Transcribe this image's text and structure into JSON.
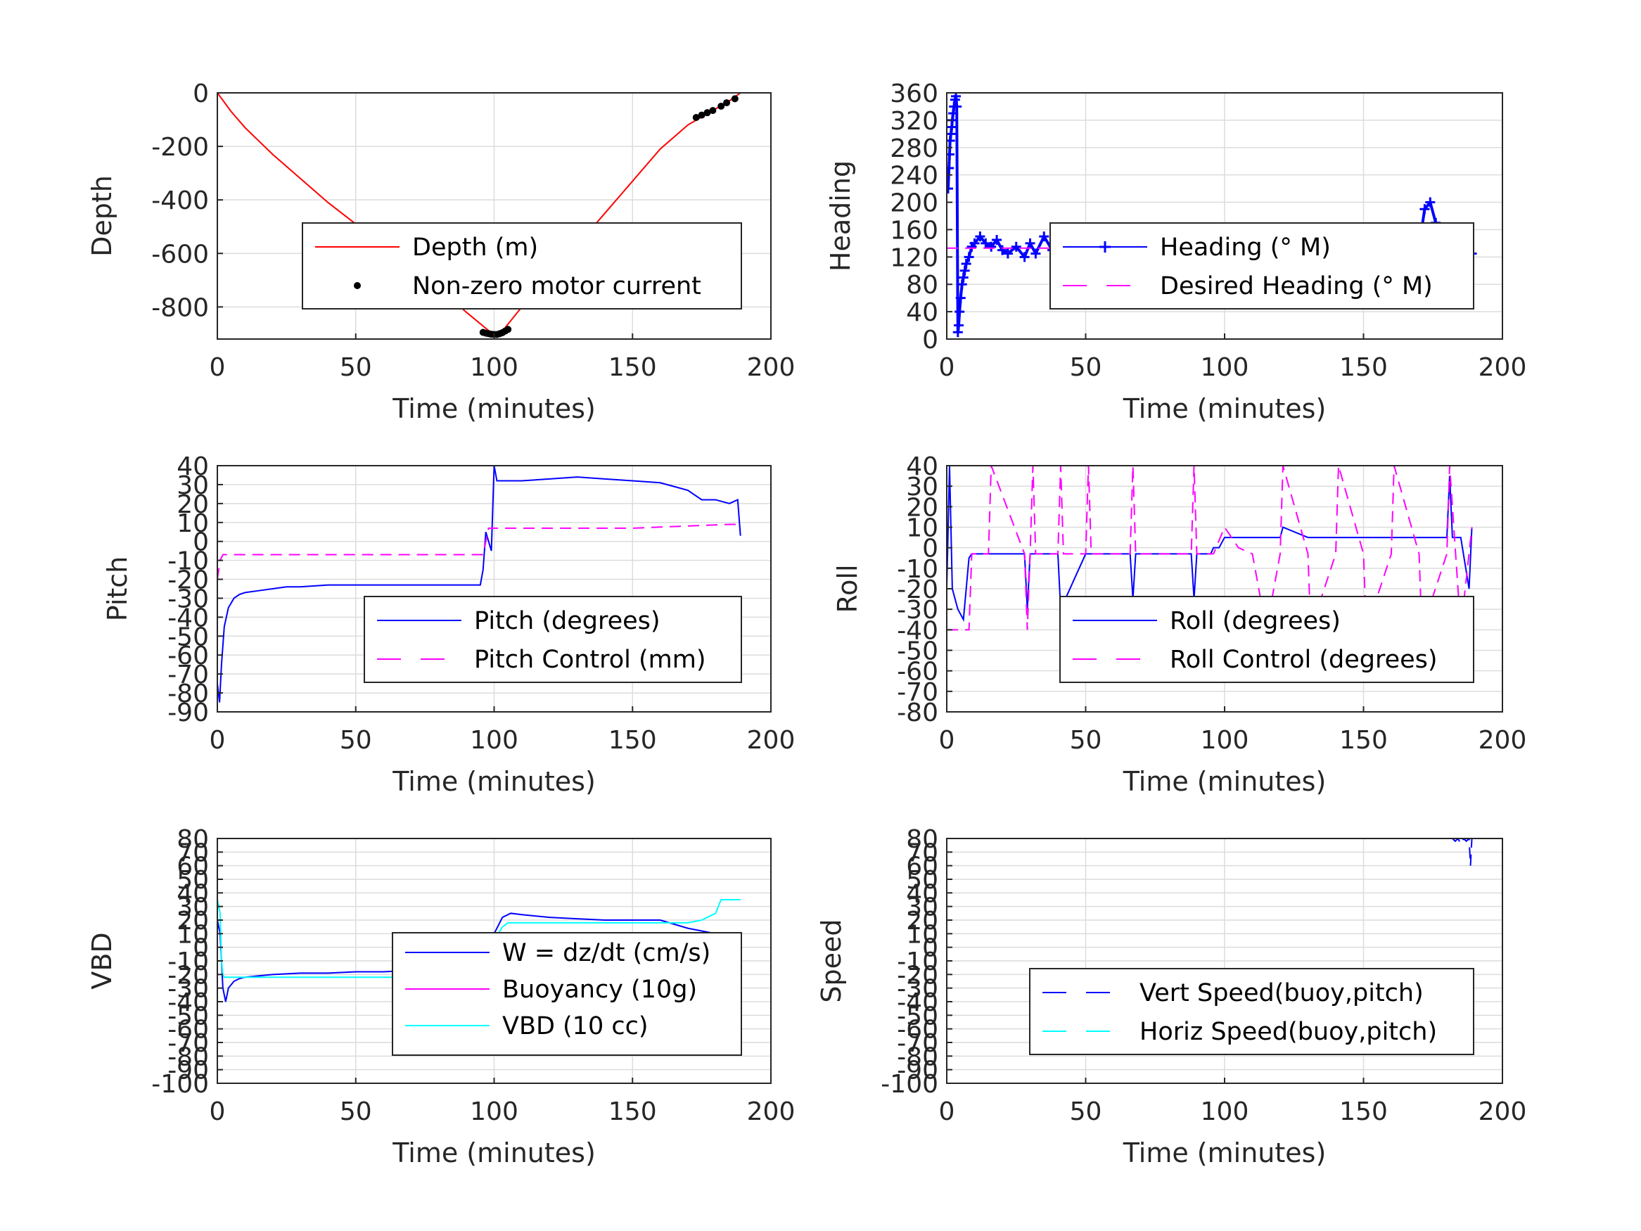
{
  "chart_data": [
    {
      "type": "line",
      "panel": "depth",
      "xlabel": "Time (minutes)",
      "ylabel": "Depth",
      "xlim": [
        0,
        200
      ],
      "ylim": [
        -920,
        0
      ],
      "xticks": [
        "0",
        "50",
        "100",
        "150",
        "200"
      ],
      "yticks": [
        "0",
        "-200",
        "-400",
        "-600",
        "-800"
      ],
      "ytick_values": [
        0,
        -200,
        -400,
        -600,
        -800
      ],
      "legend_position": "center-right",
      "series": [
        {
          "name": "Depth (m)",
          "color": "#ff0000",
          "style": "solid",
          "x": [
            0,
            5,
            10,
            20,
            30,
            40,
            50,
            60,
            70,
            80,
            90,
            97,
            100,
            103,
            110,
            120,
            130,
            140,
            150,
            160,
            170,
            175,
            180,
            185,
            189
          ],
          "y": [
            0,
            -70,
            -130,
            -230,
            -320,
            -410,
            -490,
            -570,
            -650,
            -730,
            -820,
            -880,
            -905,
            -890,
            -800,
            -690,
            -570,
            -450,
            -330,
            -210,
            -120,
            -90,
            -60,
            -30,
            0
          ]
        },
        {
          "name": "Non-zero motor current",
          "color": "#000000",
          "style": "dots",
          "x": [
            96,
            97,
            98,
            99,
            100,
            101,
            102,
            103,
            104,
            105,
            173,
            175,
            177,
            179,
            182,
            184,
            187
          ],
          "y": [
            -895,
            -898,
            -900,
            -902,
            -903,
            -903,
            -900,
            -896,
            -890,
            -884,
            -92,
            -83,
            -74,
            -66,
            -50,
            -37,
            -22
          ]
        }
      ]
    },
    {
      "type": "scatter",
      "panel": "heading",
      "xlabel": "Time (minutes)",
      "ylabel": "Heading",
      "xlim": [
        0,
        200
      ],
      "ylim": [
        0,
        360
      ],
      "xticks": [
        "0",
        "50",
        "100",
        "150",
        "200"
      ],
      "yticks": [
        "0",
        "40",
        "80",
        "120",
        "160",
        "200",
        "240",
        "280",
        "320",
        "360"
      ],
      "ytick_values": [
        0,
        40,
        80,
        120,
        160,
        200,
        240,
        280,
        320,
        360
      ],
      "legend_position": "center-right",
      "series": [
        {
          "name": "Heading (° M)",
          "color": "#0000ff",
          "style": "plus",
          "x": [
            0.5,
            0.8,
            1.0,
            1.2,
            1.5,
            1.8,
            2.0,
            2.3,
            2.6,
            3.0,
            3.3,
            3.6,
            4.0,
            4.3,
            4.6,
            5.0,
            5.5,
            6.0,
            6.5,
            7,
            8,
            9,
            10,
            12,
            14,
            16,
            18,
            20,
            22,
            25,
            28,
            30,
            32,
            35,
            38,
            40,
            45,
            50,
            55,
            60,
            65,
            70,
            75,
            80,
            85,
            90,
            95,
            98,
            100,
            105,
            110,
            115,
            120,
            125,
            130,
            135,
            140,
            145,
            150,
            155,
            160,
            163,
            166,
            168,
            170,
            172,
            174,
            176,
            178,
            180,
            183,
            186,
            189
          ],
          "y": [
            220,
            250,
            270,
            290,
            300,
            310,
            320,
            330,
            340,
            350,
            355,
            340,
            10,
            20,
            40,
            60,
            80,
            90,
            100,
            110,
            120,
            135,
            140,
            150,
            140,
            135,
            145,
            130,
            125,
            135,
            120,
            140,
            125,
            150,
            130,
            140,
            130,
            150,
            135,
            125,
            145,
            130,
            150,
            130,
            140,
            135,
            130,
            110,
            100,
            130,
            145,
            125,
            140,
            120,
            135,
            150,
            125,
            140,
            130,
            155,
            120,
            140,
            110,
            150,
            135,
            190,
            200,
            170,
            140,
            160,
            135,
            145,
            125
          ]
        },
        {
          "name": "Desired Heading (° M)",
          "color": "#ff00ff",
          "style": "dashed",
          "x": [
            0,
            190
          ],
          "y": [
            133,
            133
          ]
        }
      ]
    },
    {
      "type": "line",
      "panel": "pitch",
      "xlabel": "Time (minutes)",
      "ylabel": "Pitch",
      "xlim": [
        0,
        200
      ],
      "ylim": [
        -90,
        40
      ],
      "xticks": [
        "0",
        "50",
        "100",
        "150",
        "200"
      ],
      "yticks": [
        "-90",
        "-80",
        "-70",
        "-60",
        "-50",
        "-40",
        "-30",
        "-20",
        "-10",
        "0",
        "10",
        "20",
        "30",
        "40"
      ],
      "ytick_values": [
        -90,
        -80,
        -70,
        -60,
        -50,
        -40,
        -30,
        -20,
        -10,
        0,
        10,
        20,
        30,
        40
      ],
      "legend_position": "bottom-right",
      "series": [
        {
          "name": "Pitch (degrees)",
          "color": "#0000ff",
          "style": "solid",
          "x": [
            0,
            0.8,
            1.5,
            2.5,
            4,
            6,
            8,
            10,
            15,
            20,
            25,
            30,
            40,
            50,
            60,
            70,
            80,
            90,
            95,
            96,
            97,
            98,
            99,
            100,
            101,
            105,
            110,
            120,
            130,
            140,
            150,
            160,
            165,
            170,
            175,
            180,
            185,
            188,
            189
          ],
          "y": [
            -75,
            -85,
            -65,
            -45,
            -35,
            -30,
            -28,
            -27,
            -26,
            -25,
            -24,
            -24,
            -23,
            -23,
            -23,
            -23,
            -23,
            -23,
            -23,
            -15,
            5,
            0,
            -5,
            40,
            32,
            32,
            32,
            33,
            34,
            33,
            32,
            31,
            29,
            27,
            22,
            22,
            20,
            22,
            3
          ]
        },
        {
          "name": "Pitch Control (mm)",
          "color": "#ff00ff",
          "style": "dashed",
          "x": [
            0,
            1,
            2,
            5,
            50,
            96,
            98,
            100,
            150,
            185,
            189
          ],
          "y": [
            -20,
            -10,
            -7,
            -7,
            -7,
            -7,
            7,
            7,
            7,
            9,
            9
          ]
        }
      ]
    },
    {
      "type": "line",
      "panel": "roll",
      "xlabel": "Time (minutes)",
      "ylabel": "Roll",
      "xlim": [
        0,
        200
      ],
      "ylim": [
        -80,
        40
      ],
      "xticks": [
        "0",
        "50",
        "100",
        "150",
        "200"
      ],
      "yticks": [
        "-80",
        "-70",
        "-60",
        "-50",
        "-40",
        "-30",
        "-20",
        "-10",
        "0",
        "10",
        "20",
        "30",
        "40"
      ],
      "ytick_values": [
        -80,
        -70,
        -60,
        -50,
        -40,
        -30,
        -20,
        -10,
        0,
        10,
        20,
        30,
        40
      ],
      "legend_position": "bottom-right",
      "series": [
        {
          "name": "Roll (degrees)",
          "color": "#0000ff",
          "style": "solid",
          "x": [
            0,
            1,
            1.5,
            2,
            3,
            4,
            6,
            8,
            9,
            10,
            20,
            28,
            29,
            30,
            40,
            41,
            50,
            66,
            67,
            68,
            80,
            88,
            89,
            90,
            95,
            96,
            97,
            98,
            100,
            110,
            120,
            121,
            130,
            150,
            160,
            170,
            180,
            181,
            182,
            185,
            188,
            189
          ],
          "y": [
            -20,
            40,
            10,
            -20,
            -25,
            -30,
            -35,
            -5,
            -3,
            -3,
            -3,
            -3,
            -30,
            -3,
            -3,
            -30,
            -3,
            -3,
            -25,
            -3,
            -3,
            -3,
            -25,
            -3,
            -3,
            0,
            0,
            0,
            5,
            5,
            5,
            10,
            5,
            5,
            5,
            5,
            5,
            35,
            5,
            5,
            -20,
            10
          ]
        },
        {
          "name": "Roll Control (degrees)",
          "color": "#ff00ff",
          "style": "dashed",
          "x": [
            0,
            8,
            9,
            10,
            15,
            16,
            28,
            29,
            30,
            31,
            32,
            40,
            41,
            42,
            50,
            51,
            52,
            66,
            67,
            68,
            88,
            89,
            90,
            96,
            100,
            105,
            110,
            115,
            120,
            121,
            130,
            131,
            140,
            141,
            150,
            151,
            160,
            161,
            170,
            171,
            180,
            181,
            185,
            189
          ],
          "y": [
            -40,
            -40,
            -3,
            -3,
            -3,
            40,
            -3,
            -40,
            -3,
            40,
            -3,
            -3,
            40,
            -3,
            -3,
            40,
            -3,
            -3,
            40,
            -3,
            -3,
            40,
            -3,
            -3,
            10,
            0,
            -3,
            -40,
            -3,
            40,
            -3,
            -40,
            -3,
            40,
            -3,
            -40,
            -3,
            40,
            -3,
            -40,
            -3,
            40,
            -40,
            10
          ]
        }
      ]
    },
    {
      "type": "line",
      "panel": "vbd",
      "xlabel": "Time (minutes)",
      "ylabel": "VBD",
      "xlim": [
        0,
        200
      ],
      "ylim": [
        -100,
        80
      ],
      "xticks": [
        "0",
        "50",
        "100",
        "150",
        "200"
      ],
      "yticks": [
        "-100",
        "-90",
        "-80",
        "-70",
        "-60",
        "-50",
        "-40",
        "-30",
        "-20",
        "-10",
        "0",
        "10",
        "20",
        "30",
        "40",
        "50",
        "60",
        "70",
        "80"
      ],
      "ytick_values": [
        -100,
        -90,
        -80,
        -70,
        -60,
        -50,
        -40,
        -30,
        -20,
        -10,
        0,
        10,
        20,
        30,
        40,
        50,
        60,
        70,
        80
      ],
      "legend_position": "center-right",
      "series": [
        {
          "name": "W = dz/dt (cm/s)",
          "color": "#0000ff",
          "style": "solid",
          "x": [
            0,
            1,
            2,
            3,
            4,
            6,
            8,
            10,
            20,
            30,
            40,
            50,
            60,
            70,
            80,
            90,
            95,
            97,
            100,
            103,
            106,
            110,
            120,
            130,
            140,
            150,
            160,
            170,
            180,
            185,
            189
          ],
          "y": [
            20,
            10,
            -30,
            -40,
            -30,
            -25,
            -23,
            -22,
            -20,
            -19,
            -19,
            -18,
            -18,
            -17,
            -17,
            -17,
            -17,
            -10,
            10,
            22,
            25,
            24,
            22,
            21,
            20,
            20,
            20,
            14,
            10,
            10,
            10
          ]
        },
        {
          "name": "Buoyancy (10g)",
          "color": "#ff00ff",
          "style": "solid",
          "x": [],
          "y": []
        },
        {
          "name": "VBD (10 cc)",
          "color": "#00ffff",
          "style": "solid",
          "x": [
            0,
            1,
            1.5,
            2,
            2.5,
            4,
            50,
            95,
            98,
            100,
            103,
            105,
            110,
            120,
            170,
            175,
            180,
            182,
            185,
            189
          ],
          "y": [
            35,
            25,
            -10,
            -20,
            -22,
            -22,
            -22,
            -22,
            -10,
            5,
            15,
            18,
            18,
            18,
            18,
            20,
            25,
            35,
            35,
            35
          ]
        }
      ]
    },
    {
      "type": "line",
      "panel": "speed",
      "xlabel": "Time (minutes)",
      "ylabel": "Speed",
      "xlim": [
        0,
        200
      ],
      "ylim": [
        -100,
        80
      ],
      "xticks": [
        "0",
        "50",
        "100",
        "150",
        "200"
      ],
      "yticks": [
        "-100",
        "-90",
        "-80",
        "-70",
        "-60",
        "-50",
        "-40",
        "-30",
        "-20",
        "-10",
        "0",
        "10",
        "20",
        "30",
        "40",
        "50",
        "60",
        "70",
        "80"
      ],
      "ytick_values": [
        -100,
        -90,
        -80,
        -70,
        -60,
        -50,
        -40,
        -30,
        -20,
        -10,
        0,
        10,
        20,
        30,
        40,
        50,
        60,
        70,
        80
      ],
      "legend_position": "bottom-right",
      "series": [
        {
          "name": "Vert Speed(buoy,pitch)",
          "color": "#0000ff",
          "style": "dashed",
          "x": [
            182,
            183,
            184,
            185,
            186,
            187,
            188,
            188.5,
            189
          ],
          "y": [
            80,
            78,
            80,
            76,
            80,
            78,
            80,
            60,
            80
          ]
        },
        {
          "name": "Horiz Speed(buoy,pitch)",
          "color": "#00ffff",
          "style": "dashed",
          "x": [],
          "y": []
        }
      ]
    }
  ]
}
